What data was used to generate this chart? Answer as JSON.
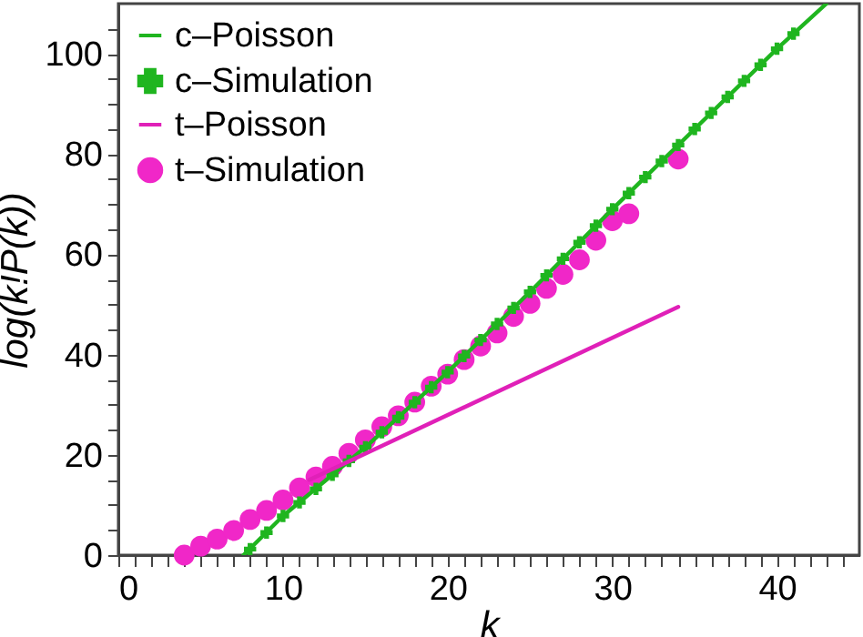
{
  "chart_data": {
    "type": "line",
    "xlabel": "k",
    "ylabel": "log(k!P(k))",
    "xlim": [
      0,
      45
    ],
    "ylim": [
      0,
      110
    ],
    "xticks": [
      0,
      {
        "value": 1,
        "label": null
      },
      {
        "value": 2,
        "label": null
      },
      {
        "value": 3,
        "label": null
      },
      {
        "value": 4,
        "label": null
      },
      {
        "value": 5,
        "label": null
      },
      {
        "value": 6,
        "label": null
      },
      {
        "value": 7,
        "label": null
      },
      {
        "value": 8,
        "label": null
      },
      {
        "value": 9,
        "label": null
      },
      10,
      {
        "value": 11,
        "label": null
      },
      {
        "value": 12,
        "label": null
      },
      {
        "value": 13,
        "label": null
      },
      {
        "value": 14,
        "label": null
      },
      {
        "value": 15,
        "label": null
      },
      {
        "value": 16,
        "label": null
      },
      {
        "value": 17,
        "label": null
      },
      {
        "value": 18,
        "label": null
      },
      {
        "value": 19,
        "label": null
      },
      20,
      {
        "value": 21,
        "label": null
      },
      {
        "value": 22,
        "label": null
      },
      {
        "value": 23,
        "label": null
      },
      {
        "value": 24,
        "label": null
      },
      {
        "value": 25,
        "label": null
      },
      {
        "value": 26,
        "label": null
      },
      {
        "value": 27,
        "label": null
      },
      {
        "value": 28,
        "label": null
      },
      {
        "value": 29,
        "label": null
      },
      30,
      {
        "value": 31,
        "label": null
      },
      {
        "value": 32,
        "label": null
      },
      {
        "value": 33,
        "label": null
      },
      {
        "value": 34,
        "label": null
      },
      {
        "value": 35,
        "label": null
      },
      {
        "value": 36,
        "label": null
      },
      {
        "value": 37,
        "label": null
      },
      {
        "value": 38,
        "label": null
      },
      {
        "value": 39,
        "label": null
      },
      40,
      {
        "value": 41,
        "label": null
      },
      {
        "value": 42,
        "label": null
      },
      {
        "value": 43,
        "label": null
      },
      {
        "value": 44,
        "label": null
      }
    ],
    "yticks": [
      0,
      {
        "value": 5,
        "label": null
      },
      {
        "value": 10,
        "label": null
      },
      {
        "value": 15,
        "label": null
      },
      20,
      {
        "value": 25,
        "label": null
      },
      {
        "value": 30,
        "label": null
      },
      {
        "value": 35,
        "label": null
      },
      40,
      {
        "value": 45,
        "label": null
      },
      {
        "value": 50,
        "label": null
      },
      {
        "value": 55,
        "label": null
      },
      60,
      {
        "value": 65,
        "label": null
      },
      {
        "value": 70,
        "label": null
      },
      {
        "value": 75,
        "label": null
      },
      80,
      {
        "value": 85,
        "label": null
      },
      {
        "value": 90,
        "label": null
      },
      {
        "value": 95,
        "label": null
      },
      100,
      {
        "value": 105,
        "label": null
      }
    ],
    "legend": "top left",
    "series": [
      {
        "name": "c–Poisson",
        "marker": "none",
        "color": "#1fb51f",
        "x": [
          7.6,
          10,
          15,
          20,
          25,
          30,
          35,
          40,
          43
        ],
        "values": [
          0,
          7.8,
          21.5,
          36.5,
          52.5,
          69,
          85,
          101,
          110
        ]
      },
      {
        "name": "c–Simulation",
        "type": "scatter",
        "marker": "cross",
        "color": "#1fb51f",
        "x": [
          8,
          9,
          10,
          11,
          12,
          13,
          14,
          15,
          16,
          17,
          18,
          19,
          20,
          21,
          22,
          23,
          24,
          25,
          26,
          27,
          28,
          29,
          30,
          31,
          32,
          33,
          34,
          35,
          36,
          37,
          38,
          39,
          40,
          41
        ],
        "values": [
          1.2,
          4.5,
          7.8,
          10.5,
          13.2,
          16,
          18.8,
          21.5,
          24.5,
          27.5,
          30.5,
          33.5,
          36.5,
          39.7,
          42.9,
          46.1,
          49.3,
          52.5,
          55.8,
          59.1,
          62.4,
          65.7,
          69,
          72.2,
          75.4,
          78.6,
          81.8,
          85,
          88.2,
          91.4,
          94.6,
          97.8,
          101,
          104
        ]
      },
      {
        "name": "t–Poisson",
        "marker": "none",
        "color": "#e020b8",
        "x": [
          11.6,
          34
        ],
        "values": [
          15,
          49.5
        ]
      },
      {
        "name": "t–Simulation",
        "type": "scatter",
        "marker": "circle",
        "color": "#f027c8",
        "x": [
          4,
          5,
          6,
          7,
          8,
          9,
          10,
          11,
          12,
          13,
          14,
          15,
          16,
          17,
          18,
          19,
          20,
          21,
          22,
          23,
          24,
          25,
          26,
          27,
          28,
          29,
          30,
          31,
          34
        ],
        "values": [
          0,
          1.8,
          3.2,
          4.9,
          7.1,
          8.9,
          11,
          13.4,
          15.6,
          17.7,
          20.3,
          23,
          25.6,
          27.8,
          30.5,
          33.7,
          36.1,
          39,
          41.7,
          44.3,
          47.6,
          50.2,
          53.2,
          56,
          58.9,
          62.8,
          66.7,
          68.1,
          79
        ]
      }
    ]
  }
}
